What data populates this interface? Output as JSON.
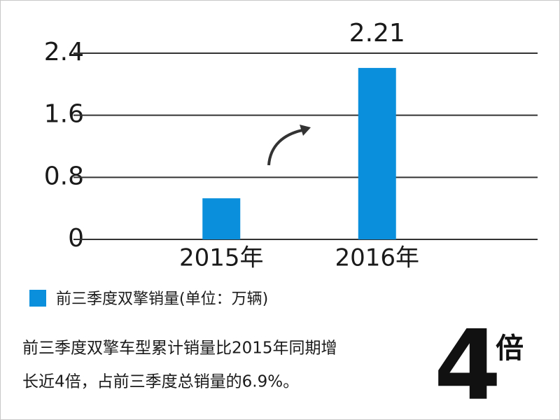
{
  "chart_data": {
    "type": "bar",
    "categories": [
      "2015年",
      "2016年"
    ],
    "series": [
      {
        "name": "前三季度双擎销量(单位：万辆)",
        "color": "#0a8fdc",
        "values": [
          0.53,
          2.21
        ]
      }
    ],
    "data_labels": [
      false,
      true
    ],
    "ylim": [
      0,
      2.4
    ],
    "yticks": [
      0,
      0.8,
      1.6,
      2.4
    ],
    "grid": true
  },
  "note": [
    "前三季度双擎车型累计销量比2015年同期增",
    "长近4倍，占前三季度总销量的6.9%。"
  ],
  "highlight": {
    "number": 4,
    "unit": "倍"
  }
}
